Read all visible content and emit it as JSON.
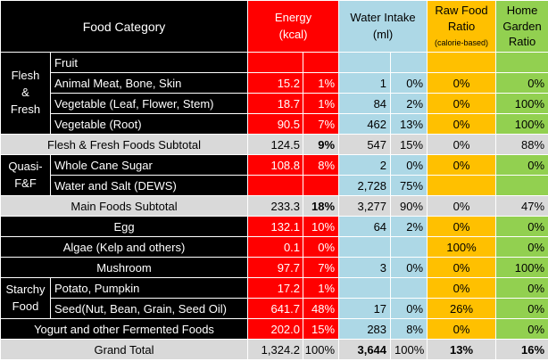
{
  "header": {
    "food_category": "Food Category",
    "energy_line1": "Energy",
    "energy_line2": "(kcal)",
    "water_line1": "Water Intake",
    "water_line2": "(ml)",
    "raw_line1": "Raw Food",
    "raw_line2": "Ratio",
    "raw_line3": "(calorie-based)",
    "home_line1": "Home",
    "home_line2": "Garden",
    "home_line3": "Ratio"
  },
  "groups": {
    "flesh_line1": "Flesh",
    "flesh_line2": "&",
    "flesh_line3": "Fresh",
    "quasi_line1": "Quasi-",
    "quasi_line2": "F&F",
    "starchy_line1": "Starchy",
    "starchy_line2": "Food"
  },
  "rows": [
    {
      "label": "Fruit",
      "energy": "",
      "energy_pct": "",
      "water": "",
      "water_pct": "",
      "raw": "",
      "home": ""
    },
    {
      "label": "Animal Meat, Bone, Skin",
      "energy": "15.2",
      "energy_pct": "1%",
      "water": "1",
      "water_pct": "0%",
      "raw": "0%",
      "home": "0%"
    },
    {
      "label": "Vegetable (Leaf, Flower, Stem)",
      "energy": "18.7",
      "energy_pct": "1%",
      "water": "84",
      "water_pct": "2%",
      "raw": "0%",
      "home": "100%"
    },
    {
      "label": "Vegetable (Root)",
      "energy": "90.5",
      "energy_pct": "7%",
      "water": "462",
      "water_pct": "13%",
      "raw": "0%",
      "home": "100%"
    },
    {
      "label": "Flesh & Fresh Foods Subtotal",
      "energy": "124.5",
      "energy_pct": "9%",
      "water": "547",
      "water_pct": "15%",
      "raw": "0%",
      "home": "88%"
    },
    {
      "label": "Whole Cane Sugar",
      "energy": "108.8",
      "energy_pct": "8%",
      "water": "2",
      "water_pct": "0%",
      "raw": "0%",
      "home": "0%"
    },
    {
      "label": "Water and Salt (DEWS)",
      "energy": "",
      "energy_pct": "",
      "water": "2,728",
      "water_pct": "75%",
      "raw": "",
      "home": ""
    },
    {
      "label": "Main Foods Subtotal",
      "energy": "233.3",
      "energy_pct": "18%",
      "water": "3,277",
      "water_pct": "90%",
      "raw": "0%",
      "home": "47%"
    },
    {
      "label": "Egg",
      "energy": "132.1",
      "energy_pct": "10%",
      "water": "64",
      "water_pct": "2%",
      "raw": "0%",
      "home": "0%"
    },
    {
      "label": "Algae (Kelp and others)",
      "energy": "0.1",
      "energy_pct": "0%",
      "water": "",
      "water_pct": "",
      "raw": "100%",
      "home": "0%"
    },
    {
      "label": "Mushroom",
      "energy": "97.7",
      "energy_pct": "7%",
      "water": "3",
      "water_pct": "0%",
      "raw": "0%",
      "home": "100%"
    },
    {
      "label": "Potato, Pumpkin",
      "energy": "17.2",
      "energy_pct": "1%",
      "water": "",
      "water_pct": "",
      "raw": "0%",
      "home": "0%"
    },
    {
      "label": "Seed(Nut, Bean, Grain, Seed Oil)",
      "energy": "641.7",
      "energy_pct": "48%",
      "water": "17",
      "water_pct": "0%",
      "raw": "26%",
      "home": "0%"
    },
    {
      "label": "Yogurt and other Fermented Foods",
      "energy": "202.0",
      "energy_pct": "15%",
      "water": "283",
      "water_pct": "8%",
      "raw": "0%",
      "home": "0%"
    },
    {
      "label": "Grand Total",
      "energy": "1,324.2",
      "energy_pct": "100%",
      "water": "3,644",
      "water_pct": "100%",
      "raw": "13%",
      "home": "16%"
    }
  ],
  "colors": {
    "label_bg": "#000000",
    "energy_bg": "#ff0000",
    "water_bg": "#add8e6",
    "raw_bg": "#ffc000",
    "home_bg": "#92d050",
    "subtotal_bg": "#d9d9d9"
  }
}
